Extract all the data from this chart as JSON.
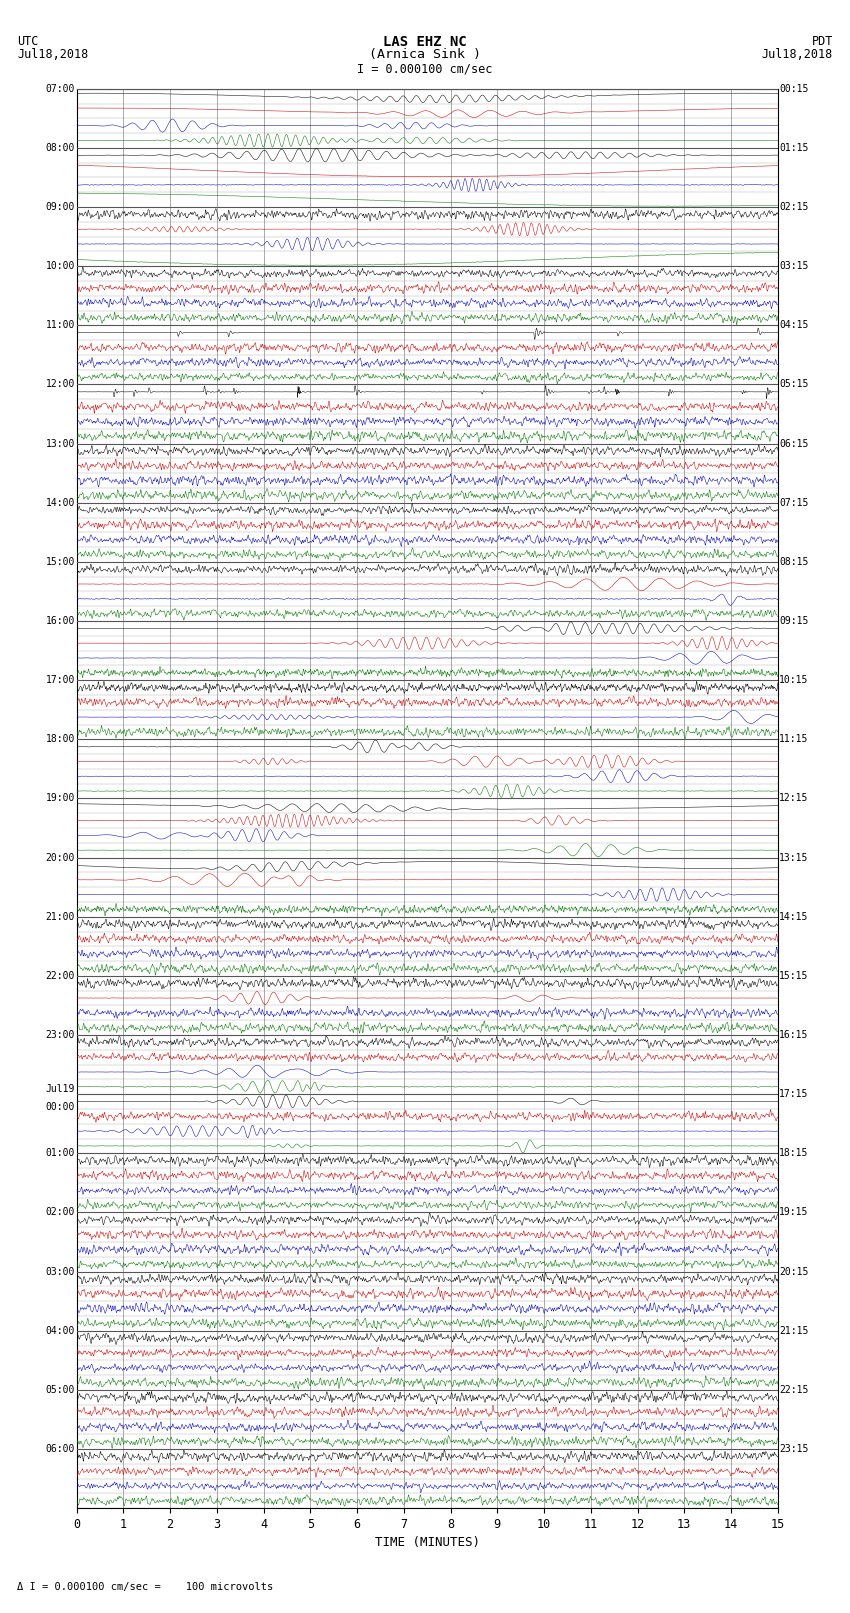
{
  "title_line1": "LAS EHZ NC",
  "title_line2": "(Arnica Sink )",
  "scale_text": "I = 0.000100 cm/sec",
  "utc_label": "UTC",
  "utc_date": "Jul18,2018",
  "pdt_label": "PDT",
  "pdt_date": "Jul18,2018",
  "xlabel": "TIME (MINUTES)",
  "xmin": 0,
  "xmax": 15,
  "xticks": [
    0,
    1,
    2,
    3,
    4,
    5,
    6,
    7,
    8,
    9,
    10,
    11,
    12,
    13,
    14,
    15
  ],
  "bg_color": "#ffffff",
  "grid_color": "#888888",
  "left_times": [
    "07:00",
    "08:00",
    "09:00",
    "10:00",
    "11:00",
    "12:00",
    "13:00",
    "14:00",
    "15:00",
    "16:00",
    "17:00",
    "18:00",
    "19:00",
    "20:00",
    "21:00",
    "22:00",
    "23:00",
    "Jul19\n00:00",
    "01:00",
    "02:00",
    "03:00",
    "04:00",
    "05:00",
    "06:00"
  ],
  "right_times": [
    "00:15",
    "01:15",
    "02:15",
    "03:15",
    "04:15",
    "05:15",
    "06:15",
    "07:15",
    "08:15",
    "09:15",
    "10:15",
    "11:15",
    "12:15",
    "13:15",
    "14:15",
    "15:15",
    "16:15",
    "17:15",
    "18:15",
    "19:15",
    "20:15",
    "21:15",
    "22:15",
    "23:15"
  ],
  "figwidth": 8.5,
  "figheight": 16.13,
  "dpi": 100,
  "colors": {
    "black": "#000000",
    "red": "#cc0000",
    "blue": "#0000bb",
    "green": "#007700"
  },
  "channels_per_row": 4,
  "num_major_rows": 24,
  "footer_text": "\\A I = 0.000100 cm/sec =    100 microvolts"
}
